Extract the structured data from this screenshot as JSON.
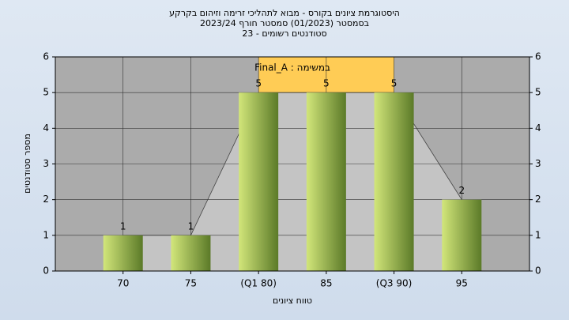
{
  "chart_data": {
    "type": "bar",
    "title": [
      "היסטוגרמת ציונים בקורס - מבוא לתהליכי זרימה וזיהום בקרקע",
      "בסמסטר  (01/2023)  סמסטר חורף 2023/24",
      "סטודנטים רשומים - 23"
    ],
    "legend": "Final_A : במשימה",
    "x_label": "טווח ציונים",
    "y_label": "מספר סטודנטים",
    "x": [
      70,
      75,
      80,
      85,
      90,
      95
    ],
    "values": [
      1,
      1,
      5,
      5,
      5,
      2
    ],
    "color": [
      "#d2e67a",
      "#5b7a28"
    ],
    "area_color": "#c4c4c4",
    "interquartile_band": {
      "x": [
        80,
        90
      ],
      "color": "#ffcc55"
    },
    "xlim": [
      65,
      100
    ],
    "xticks": [
      70,
      75,
      {
        "value": 80,
        "label": "(Q1 80)"
      },
      85,
      {
        "value": 90,
        "label": "(Q3 90)"
      },
      95
    ],
    "ylim": [
      0,
      6
    ],
    "yticks": [
      0,
      1,
      2,
      3,
      4,
      5,
      6
    ],
    "y2lim": [
      0,
      6
    ],
    "y2ticks": [
      0,
      1,
      2,
      3,
      4,
      5,
      6
    ],
    "grid": true
  }
}
